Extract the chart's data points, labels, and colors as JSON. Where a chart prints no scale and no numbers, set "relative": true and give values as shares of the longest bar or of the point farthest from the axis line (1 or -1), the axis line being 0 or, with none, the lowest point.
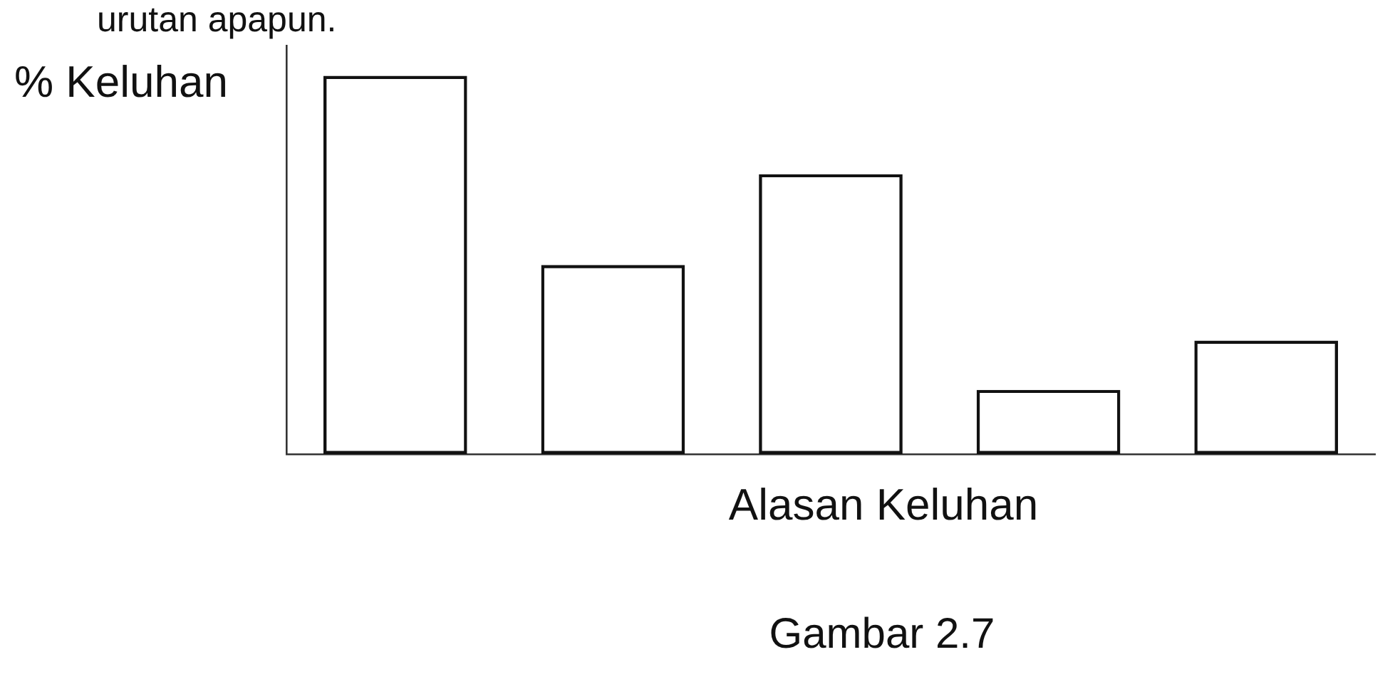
{
  "chart_data": {
    "type": "bar",
    "xlabel": "Alasan Keluhan",
    "ylabel": "% Keluhan",
    "annotations": [
      "urutan apapun.",
      "Gambar 2.7"
    ],
    "categories": [
      null,
      null,
      null,
      null,
      null
    ],
    "values": [
      1,
      0.5,
      0.74,
      0.17,
      0.3
    ],
    "color": "#111111",
    "relative": true
  }
}
